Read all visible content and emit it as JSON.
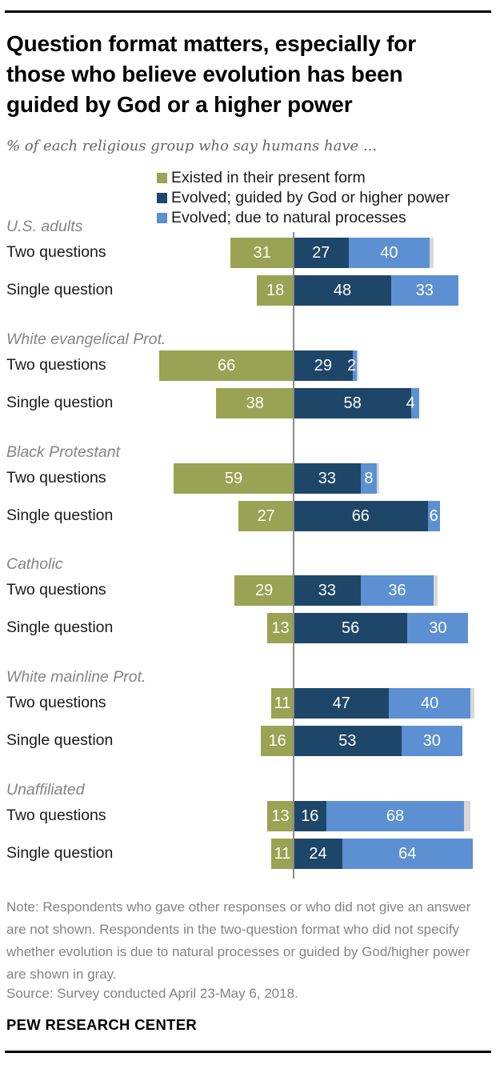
{
  "header": {
    "title_lines": [
      "Question format matters, especially for",
      "those who believe evolution has been",
      "guided by God or a higher power"
    ],
    "subtitle": "% of each religious group who say humans have ..."
  },
  "colors": {
    "existed": "#99a353",
    "guided": "#1e4669",
    "natural": "#5c90d2",
    "unspecified_gray": "#d8d8d8",
    "divider": "#8a8a8a",
    "title_text": "#000000",
    "muted_text": "#848484"
  },
  "legend": [
    {
      "key": "existed",
      "label": "Existed in their present form"
    },
    {
      "key": "guided",
      "label": "Evolved; guided by God or higher power"
    },
    {
      "key": "natural",
      "label": "Evolved; due to natural processes"
    }
  ],
  "chart_data": {
    "type": "bar",
    "variant": "horizontal-stacked, 'existed' segment right-aligned to a vertical divider line",
    "unit": "%",
    "series": [
      "Existed in their present form",
      "Evolved; guided by God or higher power",
      "Evolved; due to natural processes",
      "Did not specify (unlabeled gray cap, two-question format only)"
    ],
    "row_categories": [
      "Two questions",
      "Single question"
    ],
    "groups": [
      {
        "label": "U.S. adults",
        "rows": [
          {
            "label": "Two questions",
            "existed": 31,
            "guided": 27,
            "natural": 40,
            "unspecified": 2
          },
          {
            "label": "Single question",
            "existed": 18,
            "guided": 48,
            "natural": 33,
            "unspecified": 0
          }
        ]
      },
      {
        "label": "White evangelical Prot.",
        "rows": [
          {
            "label": "Two questions",
            "existed": 66,
            "guided": 29,
            "natural": 2,
            "unspecified": 1
          },
          {
            "label": "Single question",
            "existed": 38,
            "guided": 58,
            "natural": 4,
            "unspecified": 0
          }
        ]
      },
      {
        "label": "Black Protestant",
        "rows": [
          {
            "label": "Two questions",
            "existed": 59,
            "guided": 33,
            "natural": 8,
            "unspecified": 1
          },
          {
            "label": "Single question",
            "existed": 27,
            "guided": 66,
            "natural": 6,
            "unspecified": 0
          }
        ]
      },
      {
        "label": "Catholic",
        "rows": [
          {
            "label": "Two questions",
            "existed": 29,
            "guided": 33,
            "natural": 36,
            "unspecified": 2
          },
          {
            "label": "Single question",
            "existed": 13,
            "guided": 56,
            "natural": 30,
            "unspecified": 0
          }
        ]
      },
      {
        "label": "White mainline Prot.",
        "rows": [
          {
            "label": "Two questions",
            "existed": 11,
            "guided": 47,
            "natural": 40,
            "unspecified": 2
          },
          {
            "label": "Single question",
            "existed": 16,
            "guided": 53,
            "natural": 30,
            "unspecified": 0
          }
        ]
      },
      {
        "label": "Unaffiliated",
        "rows": [
          {
            "label": "Two questions",
            "existed": 13,
            "guided": 16,
            "natural": 68,
            "unspecified": 3
          },
          {
            "label": "Single question",
            "existed": 11,
            "guided": 24,
            "natural": 64,
            "unspecified": 0
          }
        ]
      }
    ]
  },
  "footer": {
    "note": "Note: Respondents who gave other responses or who did not give an answer are not shown. Respondents in the two-question format who did not specify whether evolution is due to natural processes or guided by God/higher power are shown in gray.",
    "source": "Source: Survey conducted April 23-May 6, 2018.",
    "brand": "PEW RESEARCH CENTER"
  }
}
